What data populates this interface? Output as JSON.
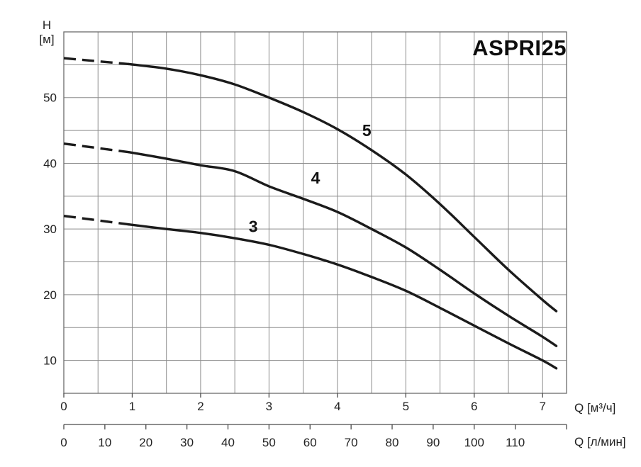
{
  "title": "ASPRI25",
  "y_axis": {
    "symbol": "H",
    "unit": "[м]"
  },
  "x_axis_primary": {
    "label": "Q [м³/ч]"
  },
  "x_axis_secondary": {
    "label": "Q [л/мин]"
  },
  "chart_data": {
    "type": "line",
    "title": "ASPRI25",
    "xlabel": "Q [м³/ч]",
    "x2label": "Q [л/мин]",
    "ylabel": "H [м]",
    "xlim": [
      0,
      7.35
    ],
    "ylim": [
      5,
      60
    ],
    "x_grid_step": 0.5,
    "y_grid_step": 5,
    "grid": true,
    "x_ticks": [
      0,
      1,
      2,
      3,
      4,
      5,
      6,
      7
    ],
    "y_ticks": [
      10,
      20,
      30,
      40,
      50
    ],
    "x2_ticks": [
      0,
      10,
      20,
      30,
      40,
      50,
      60,
      70,
      80,
      90,
      100,
      110
    ],
    "x2_per_x": 16.6667,
    "colors": {
      "curve": "#1b1b1b",
      "grid": "#8c8c8c",
      "axis": "#4a4a4a",
      "text": "#222222"
    },
    "series": [
      {
        "name": "3",
        "label_at": [
          2.77,
          30.4
        ],
        "dashed": [
          [
            0,
            32
          ],
          [
            0.95,
            30.7
          ]
        ],
        "points": [
          [
            0.95,
            30.7
          ],
          [
            1.5,
            30.0
          ],
          [
            2,
            29.4
          ],
          [
            2.5,
            28.6
          ],
          [
            3,
            27.6
          ],
          [
            3.5,
            26.2
          ],
          [
            4,
            24.6
          ],
          [
            4.5,
            22.7
          ],
          [
            5,
            20.6
          ],
          [
            5.5,
            18.0
          ],
          [
            6,
            15.3
          ],
          [
            6.5,
            12.6
          ],
          [
            7,
            10.0
          ],
          [
            7.2,
            8.8
          ]
        ]
      },
      {
        "name": "4",
        "label_at": [
          3.68,
          37.8
        ],
        "dashed": [
          [
            0,
            43
          ],
          [
            0.95,
            41.7
          ]
        ],
        "points": [
          [
            0.95,
            41.7
          ],
          [
            1.5,
            40.7
          ],
          [
            2,
            39.7
          ],
          [
            2.5,
            38.8
          ],
          [
            3,
            36.5
          ],
          [
            3.5,
            34.6
          ],
          [
            4,
            32.6
          ],
          [
            4.5,
            30.0
          ],
          [
            5,
            27.2
          ],
          [
            5.5,
            23.8
          ],
          [
            6,
            20.2
          ],
          [
            6.5,
            16.8
          ],
          [
            7,
            13.6
          ],
          [
            7.2,
            12.2
          ]
        ]
      },
      {
        "name": "5",
        "label_at": [
          4.43,
          45.0
        ],
        "dashed": [
          [
            0,
            56
          ],
          [
            0.95,
            55.1
          ]
        ],
        "points": [
          [
            0.95,
            55.1
          ],
          [
            1.5,
            54.4
          ],
          [
            2,
            53.4
          ],
          [
            2.5,
            52.0
          ],
          [
            3,
            50.0
          ],
          [
            3.5,
            47.8
          ],
          [
            4,
            45.2
          ],
          [
            4.5,
            42.0
          ],
          [
            5,
            38.3
          ],
          [
            5.5,
            33.8
          ],
          [
            6,
            28.8
          ],
          [
            6.5,
            23.8
          ],
          [
            7,
            19.2
          ],
          [
            7.2,
            17.5
          ]
        ]
      }
    ]
  }
}
